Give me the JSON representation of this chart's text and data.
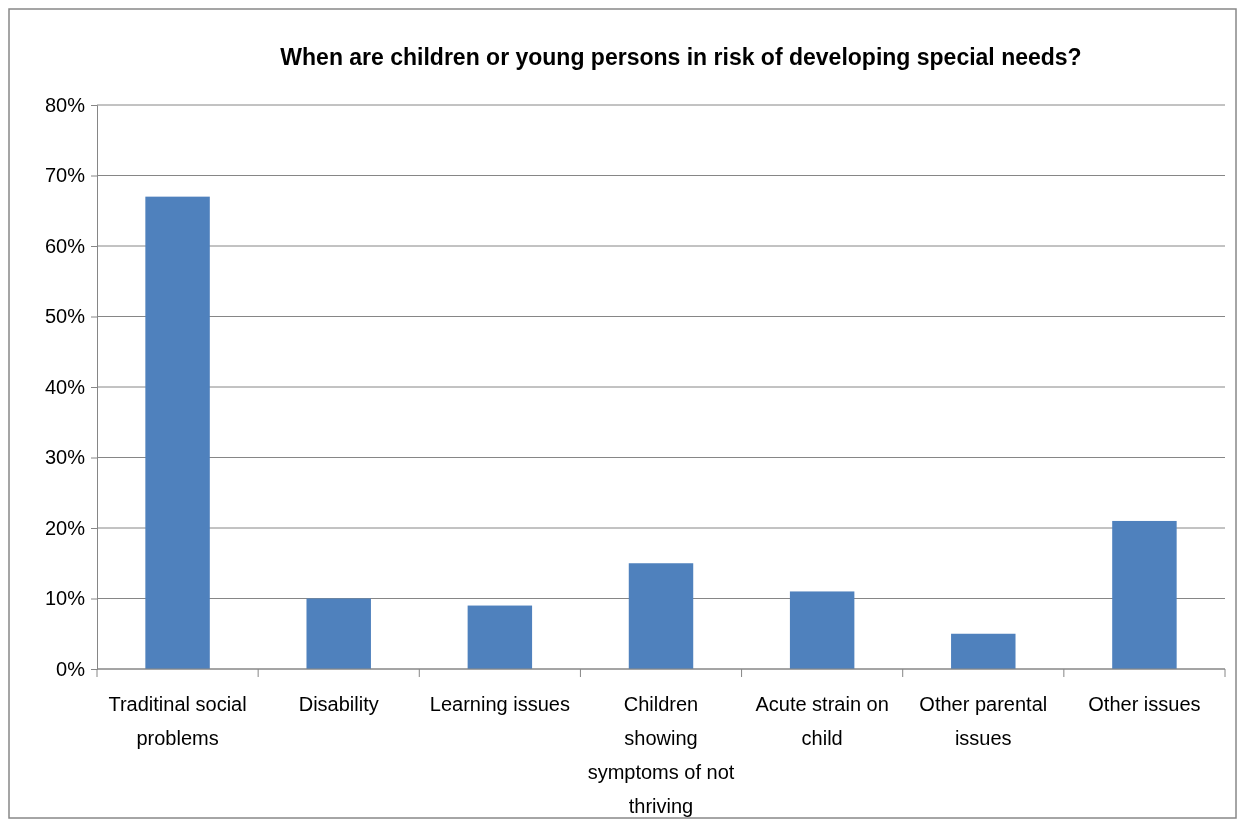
{
  "chart_data": {
    "type": "bar",
    "title": "When are children or young persons in risk of developing special needs?",
    "categories": [
      "Traditinal social problems",
      "Disability",
      "Learning issues",
      "Children showing symptoms of not thriving",
      "Acute strain on child",
      "Other parental issues",
      "Other issues"
    ],
    "values": [
      67,
      10,
      9,
      15,
      11,
      5,
      21
    ],
    "color": "#4f81bd",
    "ylim": [
      0,
      80
    ],
    "yticks": [
      {
        "value": 0,
        "label": "0%"
      },
      {
        "value": 10,
        "label": "10%"
      },
      {
        "value": 20,
        "label": "20%"
      },
      {
        "value": 30,
        "label": "30%"
      },
      {
        "value": 40,
        "label": "40%"
      },
      {
        "value": 50,
        "label": "50%"
      },
      {
        "value": 60,
        "label": "60%"
      },
      {
        "value": 70,
        "label": "70%"
      },
      {
        "value": 80,
        "label": "80%"
      }
    ],
    "grid": "y"
  }
}
